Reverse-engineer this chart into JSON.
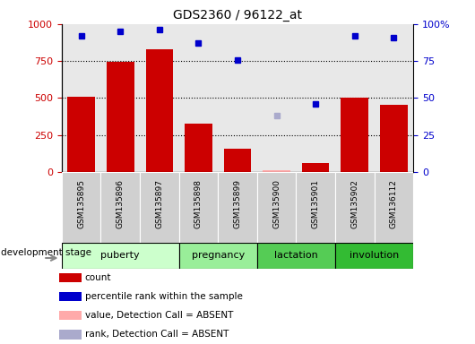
{
  "title": "GDS2360 / 96122_at",
  "samples": [
    "GSM135895",
    "GSM135896",
    "GSM135897",
    "GSM135898",
    "GSM135899",
    "GSM135900",
    "GSM135901",
    "GSM135902",
    "GSM136112"
  ],
  "bar_values": [
    510,
    745,
    830,
    330,
    155,
    10,
    60,
    505,
    455
  ],
  "bar_absent": [
    false,
    false,
    false,
    false,
    false,
    true,
    false,
    false,
    false
  ],
  "rank_values": [
    92,
    95,
    96,
    87,
    76,
    38,
    46,
    92,
    91
  ],
  "rank_absent": [
    false,
    false,
    false,
    false,
    false,
    true,
    false,
    false,
    false
  ],
  "ylim_left": [
    0,
    1000
  ],
  "ylim_right": [
    0,
    100
  ],
  "yticks_left": [
    0,
    250,
    500,
    750,
    1000
  ],
  "yticks_right": [
    0,
    25,
    50,
    75,
    100
  ],
  "ytick_labels_right": [
    "0",
    "25",
    "50",
    "75",
    "100%"
  ],
  "ytick_labels_left": [
    "0",
    "250",
    "500",
    "750",
    "1000"
  ],
  "bar_color": "#cc0000",
  "bar_absent_color": "#ffaaaa",
  "rank_color": "#0000cc",
  "rank_absent_color": "#aaaacc",
  "stage_groups": [
    {
      "label": "puberty",
      "start": 0,
      "end": 3,
      "color": "#ccffcc"
    },
    {
      "label": "pregnancy",
      "start": 3,
      "end": 5,
      "color": "#99ee99"
    },
    {
      "label": "lactation",
      "start": 5,
      "end": 7,
      "color": "#55cc55"
    },
    {
      "label": "involution",
      "start": 7,
      "end": 9,
      "color": "#33bb33"
    }
  ],
  "legend_items": [
    {
      "label": "count",
      "color": "#cc0000"
    },
    {
      "label": "percentile rank within the sample",
      "color": "#0000cc"
    },
    {
      "label": "value, Detection Call = ABSENT",
      "color": "#ffaaaa"
    },
    {
      "label": "rank, Detection Call = ABSENT",
      "color": "#aaaacc"
    }
  ],
  "xlabel_dev": "development stage",
  "plot_bg": "#e8e8e8",
  "background_color": "#ffffff"
}
